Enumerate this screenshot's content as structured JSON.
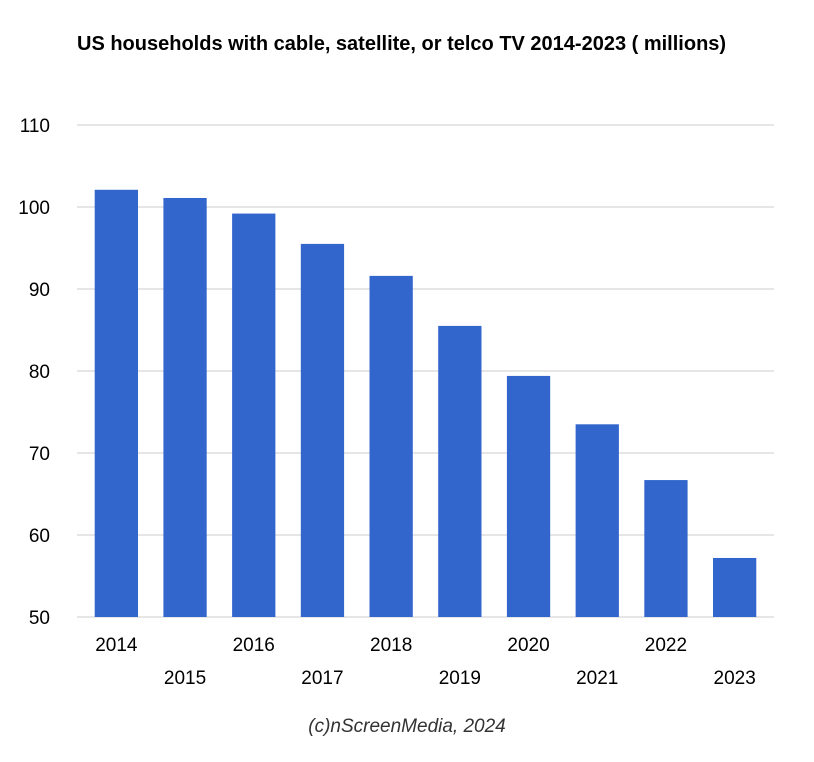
{
  "chart_data": {
    "type": "bar",
    "title": "US households with cable, satellite, or telco TV 2014-2023 ( millions)",
    "xlabel": "",
    "ylabel": "",
    "categories": [
      "2014",
      "2015",
      "2016",
      "2017",
      "2018",
      "2019",
      "2020",
      "2021",
      "2022",
      "2023"
    ],
    "values": [
      102.1,
      101.1,
      99.2,
      95.5,
      91.6,
      85.5,
      79.4,
      73.5,
      66.7,
      57.2
    ],
    "ylim": [
      50,
      110
    ],
    "yticks": [
      50,
      60,
      70,
      80,
      90,
      100,
      110
    ],
    "grid": true,
    "legend": "none",
    "bar_color": "#3366cc",
    "caption": "(c)nScreenMedia, 2024"
  }
}
